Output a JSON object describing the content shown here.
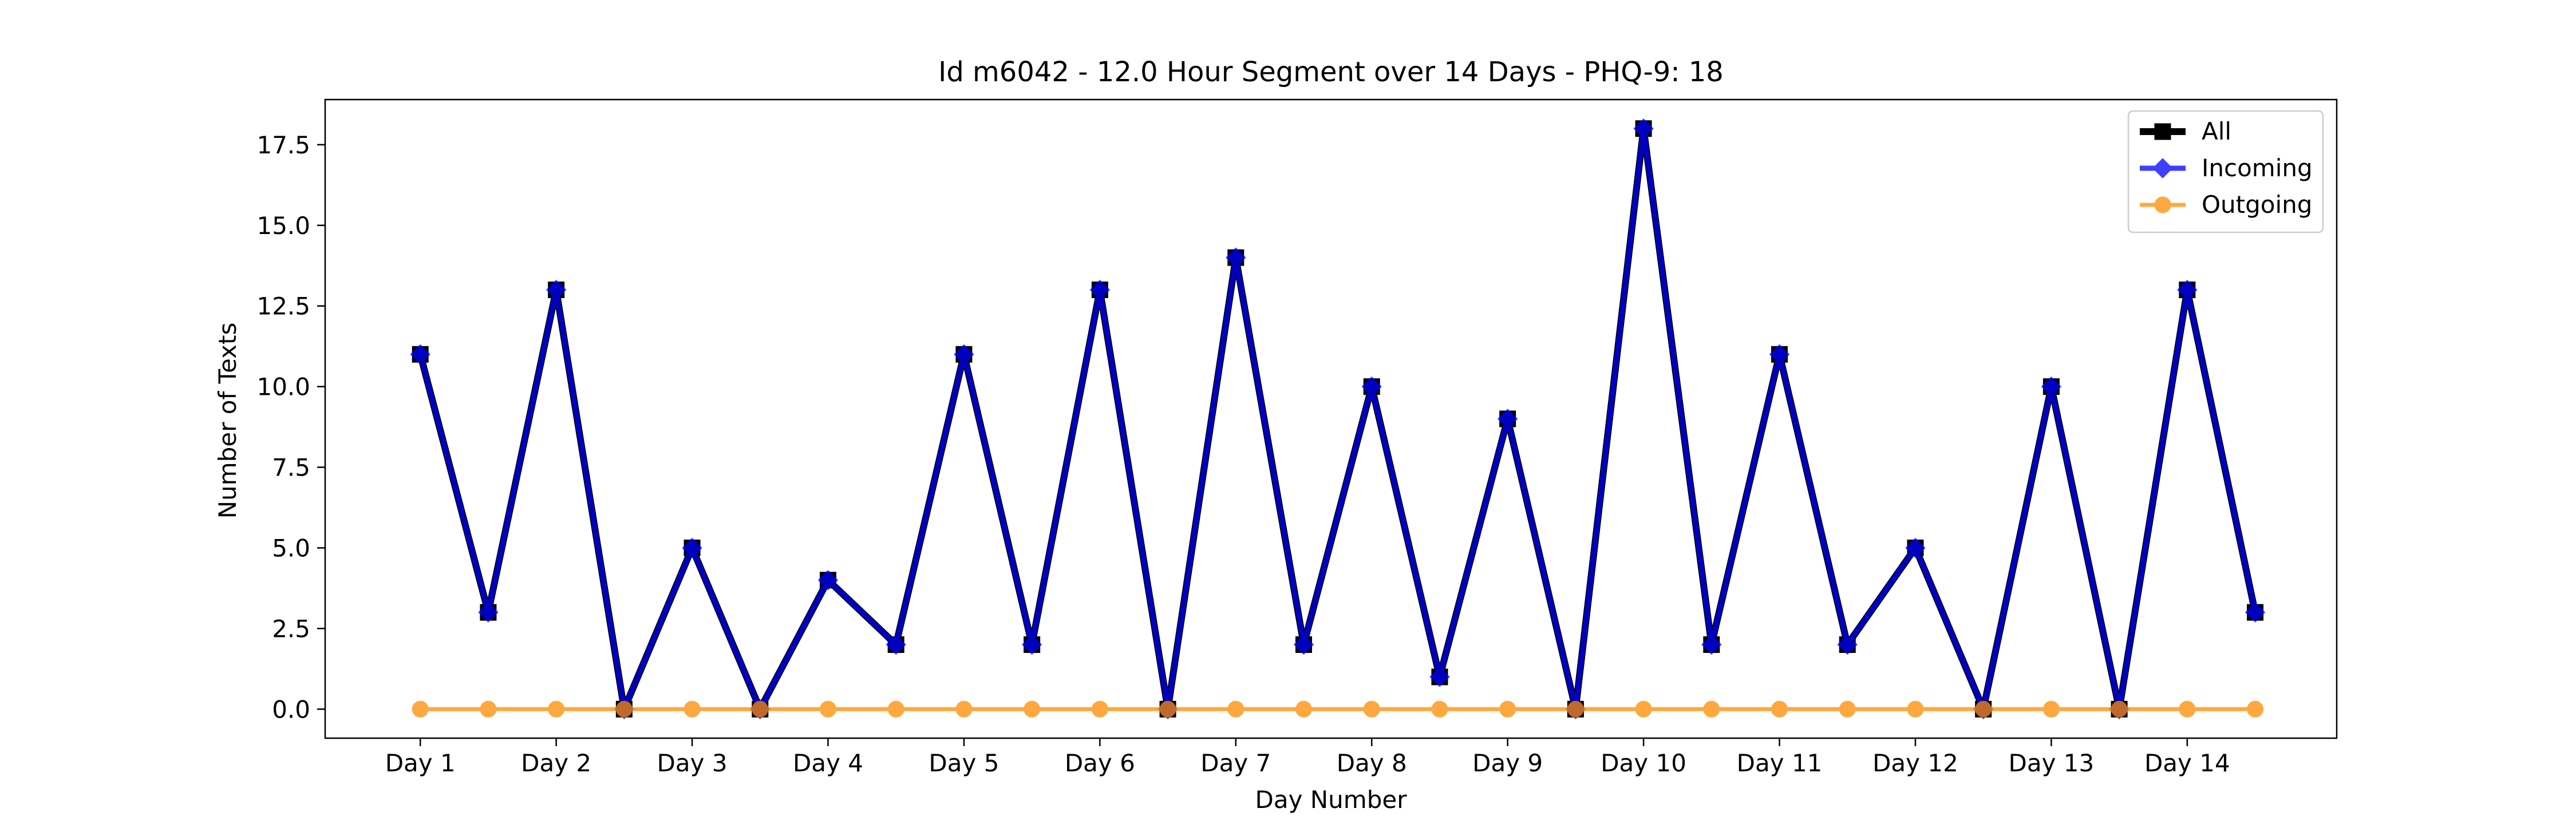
{
  "chart_data": {
    "type": "line",
    "title": "Id m6042 - 12.0 Hour Segment over 14 Days - PHQ-9: 18",
    "xlabel": "Day Number",
    "ylabel": "Number of Texts",
    "x_tick_labels": [
      "Day 1",
      "Day 2",
      "Day 3",
      "Day 4",
      "Day 5",
      "Day 6",
      "Day 7",
      "Day 8",
      "Day 9",
      "Day 10",
      "Day 11",
      "Day 12",
      "Day 13",
      "Day 14"
    ],
    "y_tick_labels": [
      "0.0",
      "2.5",
      "5.0",
      "7.5",
      "10.0",
      "12.5",
      "15.0",
      "17.5"
    ],
    "y_ticks": [
      0,
      2.5,
      5,
      7.5,
      10,
      12.5,
      15,
      17.5
    ],
    "xlim": [
      0.3,
      15.1
    ],
    "ylim": [
      -0.9,
      18.9
    ],
    "x": [
      1,
      1.5,
      2,
      2.5,
      3,
      3.5,
      4,
      4.5,
      5,
      5.5,
      6,
      6.5,
      7,
      7.5,
      8,
      8.5,
      9,
      9.5,
      10,
      10.5,
      11,
      11.5,
      12,
      12.5,
      13,
      13.5,
      14,
      14.5
    ],
    "legend_position": "top-right",
    "grid": false,
    "series": [
      {
        "name": "All",
        "color": "#000000",
        "marker": "square",
        "values": [
          11,
          3,
          13,
          0,
          5,
          0,
          4,
          2,
          11,
          2,
          13,
          0,
          14,
          2,
          10,
          1,
          9,
          0,
          18,
          2,
          11,
          2,
          5,
          0,
          10,
          0,
          13,
          3
        ]
      },
      {
        "name": "Incoming",
        "color": "#0000ff",
        "marker": "diamond",
        "values": [
          11,
          3,
          13,
          0,
          5,
          0,
          4,
          2,
          11,
          2,
          13,
          0,
          14,
          2,
          10,
          1,
          9,
          0,
          18,
          2,
          11,
          2,
          5,
          0,
          10,
          0,
          13,
          3
        ]
      },
      {
        "name": "Outgoing",
        "color": "#ff8c00",
        "marker": "circle",
        "values": [
          0,
          0,
          0,
          0,
          0,
          0,
          0,
          0,
          0,
          0,
          0,
          0,
          0,
          0,
          0,
          0,
          0,
          0,
          0,
          0,
          0,
          0,
          0,
          0,
          0,
          0,
          0,
          0
        ]
      }
    ]
  }
}
